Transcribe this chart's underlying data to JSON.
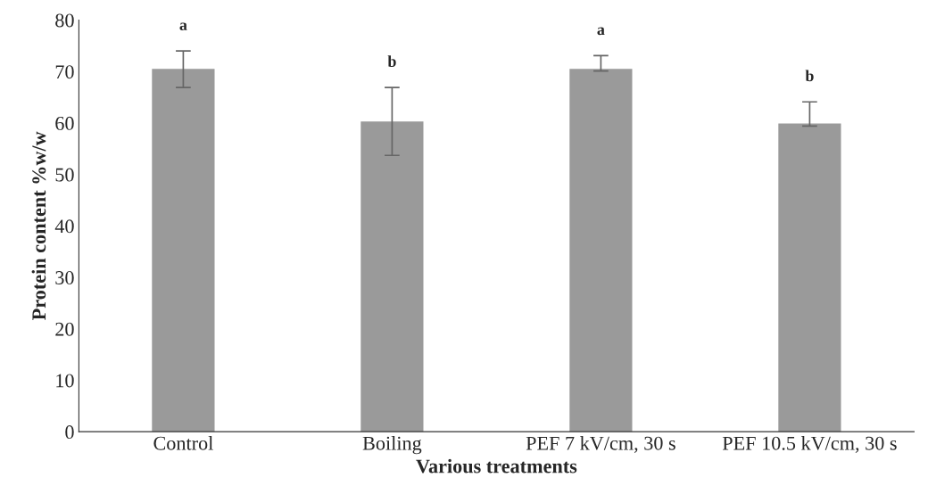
{
  "chart_data": {
    "type": "bar",
    "xlabel": "Various treatments",
    "ylabel": "Protein content %w/w",
    "categories": [
      "Control",
      "Boiling",
      "PEF 7 kV/cm, 30 s",
      "PEF 10.5 kV/cm, 30 s"
    ],
    "values": [
      70.5,
      60.3,
      70.5,
      59.9
    ],
    "errors": [
      [
        66.9,
        74.0
      ],
      [
        53.7,
        66.9
      ],
      [
        70.1,
        73.1
      ],
      [
        59.4,
        64.1
      ]
    ],
    "color": "#9a9a9a",
    "ylim": [
      0,
      80
    ],
    "yticks": [
      0,
      10,
      20,
      30,
      40,
      50,
      60,
      70,
      80
    ],
    "annotations": [
      "a",
      "b",
      "a",
      "b"
    ]
  }
}
